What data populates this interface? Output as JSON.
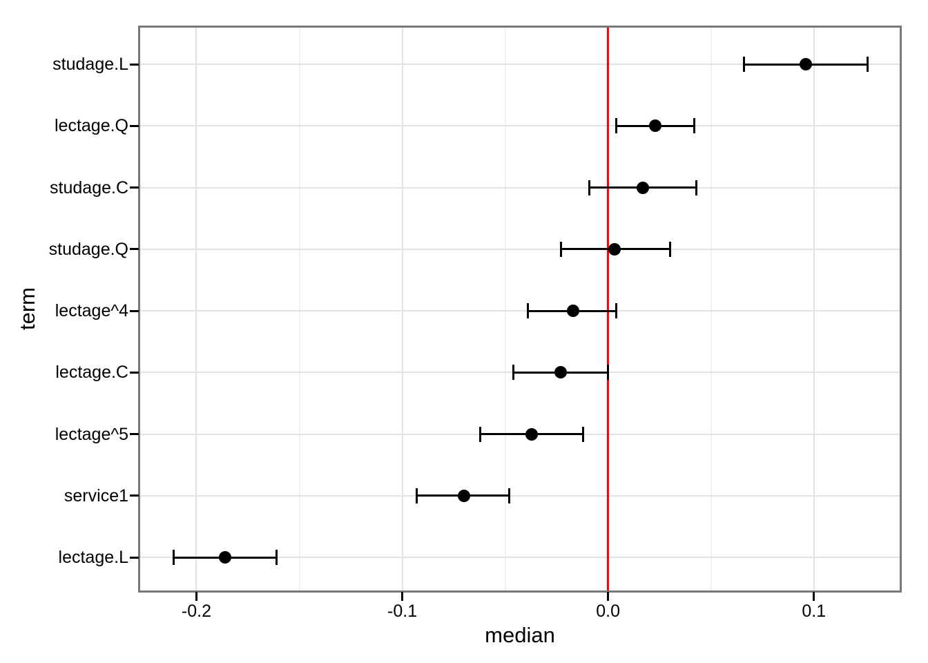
{
  "figure": {
    "background": "#ffffff"
  },
  "chart_data": {
    "type": "scatter",
    "subtype": "coefficient-dot-whisker-plot",
    "title": "",
    "xlabel": "median",
    "ylabel": "term",
    "xlim": [
      -0.228,
      0.142
    ],
    "x_major_ticks": [
      -0.2,
      -0.1,
      0.0,
      0.1
    ],
    "x_tick_labels": [
      "-0.2",
      "-0.1",
      "0.0",
      "0.1"
    ],
    "x_minor_gridlines": [
      -0.15,
      -0.05,
      0.05
    ],
    "grid": true,
    "legend": false,
    "reference_line": {
      "orientation": "vertical",
      "x": 0.0,
      "color": "#ff0000"
    },
    "categories_top_to_bottom": [
      "studage.L",
      "lectage.Q",
      "studage.C",
      "studage.Q",
      "lectage^4",
      "lectage.C",
      "lectage^5",
      "service1",
      "lectage.L"
    ],
    "series": [
      {
        "term": "studage.L",
        "median": 0.096,
        "ci_low": 0.066,
        "ci_high": 0.126
      },
      {
        "term": "lectage.Q",
        "median": 0.023,
        "ci_low": 0.004,
        "ci_high": 0.042
      },
      {
        "term": "studage.C",
        "median": 0.017,
        "ci_low": -0.009,
        "ci_high": 0.043
      },
      {
        "term": "studage.Q",
        "median": 0.003,
        "ci_low": -0.023,
        "ci_high": 0.03
      },
      {
        "term": "lectage^4",
        "median": -0.017,
        "ci_low": -0.039,
        "ci_high": 0.004
      },
      {
        "term": "lectage.C",
        "median": -0.023,
        "ci_low": -0.046,
        "ci_high": 0.0
      },
      {
        "term": "lectage^5",
        "median": -0.037,
        "ci_low": -0.062,
        "ci_high": -0.012
      },
      {
        "term": "service1",
        "median": -0.07,
        "ci_low": -0.093,
        "ci_high": -0.048
      },
      {
        "term": "lectage.L",
        "median": -0.186,
        "ci_low": -0.211,
        "ci_high": -0.161
      }
    ],
    "colors": {
      "point": "#000000",
      "errorbar": "#000000",
      "reference_line": "#ff0000",
      "grid_major": "#e3e3e3",
      "grid_minor": "#f2f2f2",
      "panel_border": "#787878",
      "tick": "#000000",
      "text": "#000000",
      "panel_background": "#ffffff"
    }
  }
}
